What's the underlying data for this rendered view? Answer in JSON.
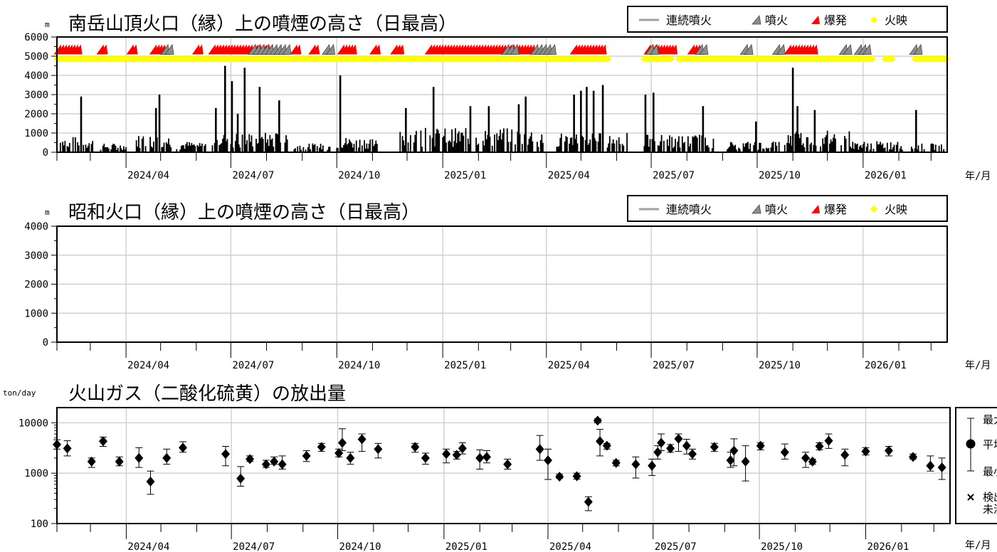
{
  "chart_data": [
    {
      "id": "minamidake",
      "type": "bar",
      "title": "南岳山頂火口（縁）上の噴煙の高さ（日最高）",
      "unit": "m",
      "ylim": [
        0,
        6000
      ],
      "yticks": [
        0,
        1000,
        2000,
        3000,
        4000,
        5000,
        6000
      ],
      "xlim": [
        "2024-02-01",
        "2026-03-15"
      ],
      "xticks": [
        "2024/04",
        "2024/07",
        "2024/10",
        "2025/01",
        "2025/04",
        "2025/07",
        "2025/10",
        "2026/01"
      ],
      "xunit": "年/月",
      "grid": true,
      "legend": {
        "position": "top-right",
        "items": [
          {
            "label": "連続噴火",
            "symbol": "line",
            "color": "#a0a0a0"
          },
          {
            "label": "噴火",
            "symbol": "gray-marker",
            "color": "#8c8c8c"
          },
          {
            "label": "爆発",
            "symbol": "red-marker",
            "color": "#ff0000"
          },
          {
            "label": "火映",
            "symbol": "diamond",
            "color": "#ffff00"
          }
        ]
      },
      "plume_peaks": [
        {
          "date": "2024-02-22",
          "height": 2900
        },
        {
          "date": "2024-04-27",
          "height": 2300
        },
        {
          "date": "2024-04-30",
          "height": 3000
        },
        {
          "date": "2024-06-18",
          "height": 2300
        },
        {
          "date": "2024-06-26",
          "height": 4500
        },
        {
          "date": "2024-07-02",
          "height": 3700
        },
        {
          "date": "2024-07-07",
          "height": 2000
        },
        {
          "date": "2024-07-13",
          "height": 4400
        },
        {
          "date": "2024-07-26",
          "height": 3400
        },
        {
          "date": "2024-08-12",
          "height": 2700
        },
        {
          "date": "2024-10-04",
          "height": 4000
        },
        {
          "date": "2024-11-30",
          "height": 2300
        },
        {
          "date": "2024-12-24",
          "height": 3400
        },
        {
          "date": "2025-01-25",
          "height": 2400
        },
        {
          "date": "2025-02-10",
          "height": 2400
        },
        {
          "date": "2025-03-08",
          "height": 2500
        },
        {
          "date": "2025-03-14",
          "height": 2900
        },
        {
          "date": "2025-04-25",
          "height": 3000
        },
        {
          "date": "2025-05-01",
          "height": 3200
        },
        {
          "date": "2025-05-06",
          "height": 3400
        },
        {
          "date": "2025-05-12",
          "height": 3200
        },
        {
          "date": "2025-05-20",
          "height": 3500
        },
        {
          "date": "2025-06-26",
          "height": 3000
        },
        {
          "date": "2025-07-03",
          "height": 3100
        },
        {
          "date": "2025-08-15",
          "height": 2400
        },
        {
          "date": "2025-09-30",
          "height": 1600
        },
        {
          "date": "2025-11-01",
          "height": 4400
        },
        {
          "date": "2025-11-05",
          "height": 2400
        },
        {
          "date": "2025-11-20",
          "height": 2200
        },
        {
          "date": "2026-02-16",
          "height": 2200
        }
      ],
      "active_periods": [
        [
          "2024-02-01",
          "2024-03-05",
          700
        ],
        [
          "2024-03-10",
          "2024-04-01",
          400
        ],
        [
          "2024-04-10",
          "2024-05-10",
          800
        ],
        [
          "2024-05-15",
          "2024-06-10",
          500
        ],
        [
          "2024-06-15",
          "2024-08-20",
          900
        ],
        [
          "2024-08-25",
          "2024-09-25",
          400
        ],
        [
          "2024-10-01",
          "2024-11-05",
          700
        ],
        [
          "2024-11-25",
          "2025-03-30",
          1100
        ],
        [
          "2025-04-10",
          "2025-06-10",
          900
        ],
        [
          "2025-06-25",
          "2025-08-25",
          800
        ],
        [
          "2025-09-05",
          "2025-10-20",
          500
        ],
        [
          "2025-10-25",
          "2025-12-20",
          1000
        ],
        [
          "2025-12-20",
          "2026-02-05",
          500
        ],
        [
          "2026-02-10",
          "2026-03-12",
          400
        ]
      ],
      "event_bands": {
        "explosion": [
          [
            "2024-02-02",
            "2024-02-20"
          ],
          [
            "2024-03-10",
            "2024-03-14"
          ],
          [
            "2024-04-05",
            "2024-04-09"
          ],
          [
            "2024-04-25",
            "2024-05-04"
          ],
          [
            "2024-06-01",
            "2024-06-04"
          ],
          [
            "2024-06-15",
            "2024-08-05"
          ],
          [
            "2024-08-25",
            "2024-08-28"
          ],
          [
            "2024-09-10",
            "2024-09-13"
          ],
          [
            "2024-10-05",
            "2024-10-15"
          ],
          [
            "2024-11-02",
            "2024-11-05"
          ],
          [
            "2024-11-20",
            "2024-11-27"
          ],
          [
            "2024-12-20",
            "2025-03-20"
          ],
          [
            "2025-04-25",
            "2025-05-22"
          ],
          [
            "2025-06-28",
            "2025-07-22"
          ],
          [
            "2025-08-05",
            "2025-08-10"
          ],
          [
            "2025-10-28",
            "2025-11-20"
          ]
        ],
        "eruption": [
          [
            "2024-05-05",
            "2024-05-09"
          ],
          [
            "2024-07-20",
            "2024-08-22"
          ],
          [
            "2024-09-22",
            "2024-09-26"
          ],
          [
            "2025-02-25",
            "2025-03-06"
          ],
          [
            "2025-03-22",
            "2025-04-08"
          ],
          [
            "2025-06-30",
            "2025-07-06"
          ],
          [
            "2025-08-12",
            "2025-08-18"
          ],
          [
            "2025-09-20",
            "2025-09-26"
          ],
          [
            "2025-10-18",
            "2025-10-24"
          ],
          [
            "2025-12-15",
            "2025-12-20"
          ],
          [
            "2025-12-28",
            "2026-01-06"
          ],
          [
            "2026-02-14",
            "2026-02-18"
          ]
        ],
        "incandescence": [
          [
            "2024-02-01",
            "2024-09-30"
          ],
          [
            "2024-10-01",
            "2025-05-25"
          ],
          [
            "2025-06-25",
            "2025-07-20"
          ],
          [
            "2025-07-25",
            "2026-01-10"
          ],
          [
            "2026-01-20",
            "2026-01-28"
          ],
          [
            "2026-02-15",
            "2026-03-15"
          ]
        ]
      }
    },
    {
      "id": "showa",
      "type": "bar",
      "title": "昭和火口（縁）上の噴煙の高さ（日最高）",
      "unit": "m",
      "ylim": [
        0,
        4000
      ],
      "yticks": [
        0,
        1000,
        2000,
        3000,
        4000
      ],
      "xlim": [
        "2024-02-01",
        "2026-03-15"
      ],
      "xticks": [
        "2024/04",
        "2024/07",
        "2024/10",
        "2025/01",
        "2025/04",
        "2025/07",
        "2025/10",
        "2026/01"
      ],
      "xunit": "年/月",
      "grid": true,
      "legend": {
        "position": "top-right",
        "items": [
          {
            "label": "連続噴火",
            "symbol": "line",
            "color": "#a0a0a0"
          },
          {
            "label": "噴火",
            "symbol": "gray-marker",
            "color": "#8c8c8c"
          },
          {
            "label": "爆発",
            "symbol": "red-marker",
            "color": "#ff0000"
          },
          {
            "label": "火映",
            "symbol": "diamond",
            "color": "#ffff00"
          }
        ]
      },
      "values": []
    },
    {
      "id": "so2",
      "type": "scatter",
      "title": "火山ガス（二酸化硫黄）の放出量",
      "unit": "ton/day",
      "yscale": "log",
      "ylim": [
        100,
        20000
      ],
      "yticks": [
        100,
        1000,
        10000
      ],
      "xlim": [
        "2024-02-01",
        "2026-03-15"
      ],
      "xticks": [
        "2024/04",
        "2024/07",
        "2024/10",
        "2025/01",
        "2025/04",
        "2025/07",
        "2025/10",
        "2026/01"
      ],
      "xunit": "年/月",
      "grid": true,
      "legend": {
        "position": "right",
        "items": [
          {
            "label": "最大",
            "symbol": "errorbar-top"
          },
          {
            "label": "平均",
            "symbol": "dot"
          },
          {
            "label": "最小",
            "symbol": "errorbar-bottom"
          },
          {
            "label": "検出\n未満",
            "symbol": "cross"
          }
        ]
      },
      "points": [
        {
          "date": "2024-02-01",
          "mean": 3700,
          "min": 3000,
          "max": 4600
        },
        {
          "date": "2024-02-10",
          "mean": 3100,
          "min": 2200,
          "max": 4400
        },
        {
          "date": "2024-03-02",
          "mean": 1700,
          "min": 1300,
          "max": 2000
        },
        {
          "date": "2024-03-12",
          "mean": 4300,
          "min": 3400,
          "max": 5200
        },
        {
          "date": "2024-03-26",
          "mean": 1700,
          "min": 1400,
          "max": 2100
        },
        {
          "date": "2024-04-12",
          "mean": 2000,
          "min": 1300,
          "max": 3200
        },
        {
          "date": "2024-04-22",
          "mean": 680,
          "min": 380,
          "max": 1100
        },
        {
          "date": "2024-05-06",
          "mean": 2000,
          "min": 1500,
          "max": 3000
        },
        {
          "date": "2024-05-20",
          "mean": 3200,
          "min": 2600,
          "max": 4200
        },
        {
          "date": "2024-06-26",
          "mean": 2400,
          "min": 1400,
          "max": 3400
        },
        {
          "date": "2024-07-09",
          "mean": 780,
          "min": 550,
          "max": 1350
        },
        {
          "date": "2024-07-17",
          "mean": 1900,
          "min": 1700,
          "max": 2200
        },
        {
          "date": "2024-07-31",
          "mean": 1500,
          "min": 1300,
          "max": 1800
        },
        {
          "date": "2024-08-07",
          "mean": 1700,
          "min": 1500,
          "max": 2100
        },
        {
          "date": "2024-08-14",
          "mean": 1500,
          "min": 1200,
          "max": 2200
        },
        {
          "date": "2024-09-04",
          "mean": 2200,
          "min": 1700,
          "max": 2800
        },
        {
          "date": "2024-09-17",
          "mean": 3300,
          "min": 2700,
          "max": 3900
        },
        {
          "date": "2024-10-02",
          "mean": 2500,
          "min": 2100,
          "max": 3000
        },
        {
          "date": "2024-10-05",
          "mean": 4000,
          "min": 2800,
          "max": 7600
        },
        {
          "date": "2024-10-12",
          "mean": 2000,
          "min": 1500,
          "max": 2600
        },
        {
          "date": "2024-10-22",
          "mean": 4700,
          "min": 2700,
          "max": 6000
        },
        {
          "date": "2024-11-05",
          "mean": 3000,
          "min": 2000,
          "max": 3900
        },
        {
          "date": "2024-12-07",
          "mean": 3300,
          "min": 2600,
          "max": 3900
        },
        {
          "date": "2024-12-16",
          "mean": 2000,
          "min": 1500,
          "max": 2500
        },
        {
          "date": "2025-01-03",
          "mean": 2400,
          "min": 1600,
          "max": 3000
        },
        {
          "date": "2025-01-12",
          "mean": 2300,
          "min": 1900,
          "max": 2700
        },
        {
          "date": "2025-01-17",
          "mean": 3100,
          "min": 2400,
          "max": 4000
        },
        {
          "date": "2025-02-01",
          "mean": 2000,
          "min": 1200,
          "max": 2900
        },
        {
          "date": "2025-02-07",
          "mean": 2100,
          "min": 1600,
          "max": 2800
        },
        {
          "date": "2025-02-25",
          "mean": 1500,
          "min": 1200,
          "max": 1900
        },
        {
          "date": "2025-03-25",
          "mean": 3000,
          "min": 1800,
          "max": 5600
        },
        {
          "date": "2025-04-01",
          "mean": 1800,
          "min": 750,
          "max": 3000
        },
        {
          "date": "2025-04-11",
          "mean": 850,
          "min": 790,
          "max": 950
        },
        {
          "date": "2025-04-26",
          "mean": 870,
          "min": 760,
          "max": 1000
        },
        {
          "date": "2025-05-06",
          "mean": 270,
          "min": 180,
          "max": 340
        },
        {
          "date": "2025-05-14",
          "mean": 11000,
          "min": 10000,
          "max": 12000
        },
        {
          "date": "2025-05-16",
          "mean": 4300,
          "min": 2200,
          "max": 7400
        },
        {
          "date": "2025-05-22",
          "mean": 3500,
          "min": 3000,
          "max": 3900
        },
        {
          "date": "2025-05-30",
          "mean": 1600,
          "min": 1400,
          "max": 1800
        },
        {
          "date": "2025-06-16",
          "mean": 1500,
          "min": 800,
          "max": 2100
        },
        {
          "date": "2025-06-30",
          "mean": 1400,
          "min": 900,
          "max": 1900
        },
        {
          "date": "2025-07-05",
          "mean": 2600,
          "min": 1900,
          "max": 3500
        },
        {
          "date": "2025-07-08",
          "mean": 4000,
          "min": 2800,
          "max": 6000
        },
        {
          "date": "2025-07-16",
          "mean": 3100,
          "min": 2600,
          "max": 3700
        },
        {
          "date": "2025-07-23",
          "mean": 4800,
          "min": 2700,
          "max": 6000
        },
        {
          "date": "2025-07-30",
          "mean": 3500,
          "min": 2400,
          "max": 4700
        },
        {
          "date": "2025-08-04",
          "mean": 2400,
          "min": 1900,
          "max": 3000
        },
        {
          "date": "2025-08-23",
          "mean": 3300,
          "min": 2700,
          "max": 3900
        },
        {
          "date": "2025-09-06",
          "mean": 1800,
          "min": 1300,
          "max": 2600
        },
        {
          "date": "2025-09-09",
          "mean": 2800,
          "min": 1400,
          "max": 4800
        },
        {
          "date": "2025-09-19",
          "mean": 1700,
          "min": 700,
          "max": 3500
        },
        {
          "date": "2025-10-02",
          "mean": 3500,
          "min": 2900,
          "max": 4000
        },
        {
          "date": "2025-10-23",
          "mean": 2600,
          "min": 1900,
          "max": 3800
        },
        {
          "date": "2025-11-10",
          "mean": 2000,
          "min": 1300,
          "max": 2600
        },
        {
          "date": "2025-11-16",
          "mean": 1700,
          "min": 1500,
          "max": 1900
        },
        {
          "date": "2025-11-22",
          "mean": 3400,
          "min": 2900,
          "max": 4000
        },
        {
          "date": "2025-11-30",
          "mean": 4400,
          "min": 3100,
          "max": 6000
        },
        {
          "date": "2025-12-14",
          "mean": 2300,
          "min": 1400,
          "max": 3000
        },
        {
          "date": "2026-01-01",
          "mean": 2700,
          "min": 2300,
          "max": 3200
        },
        {
          "date": "2026-01-21",
          "mean": 2800,
          "min": 2200,
          "max": 3400
        },
        {
          "date": "2026-02-11",
          "mean": 2100,
          "min": 1900,
          "max": 2400
        },
        {
          "date": "2026-02-26",
          "mean": 1400,
          "min": 1100,
          "max": 2200
        },
        {
          "date": "2026-03-08",
          "mean": 1300,
          "min": 750,
          "max": 2000
        }
      ]
    }
  ]
}
